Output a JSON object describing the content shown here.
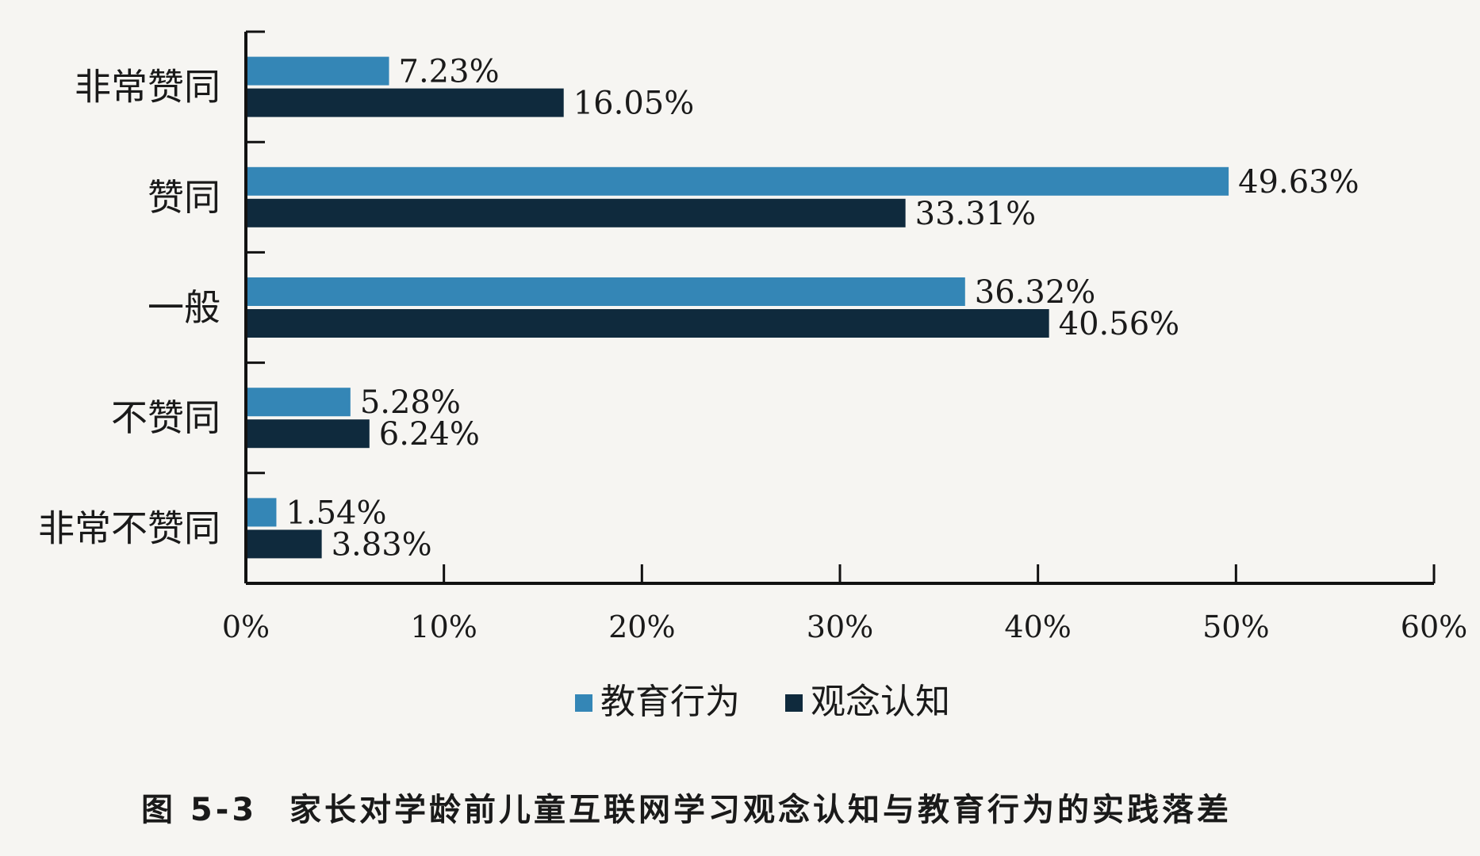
{
  "chart_data": {
    "type": "bar",
    "orientation": "horizontal",
    "categories": [
      "非常赞同",
      "赞同",
      "一般",
      "不赞同",
      "非常不赞同"
    ],
    "series": [
      {
        "name": "教育行为",
        "color": "#3486b6",
        "values": [
          7.23,
          49.63,
          36.32,
          5.28,
          1.54
        ],
        "labels": [
          "7.23%",
          "49.63%",
          "36.32%",
          "5.28%",
          "1.54%"
        ]
      },
      {
        "name": "观念认知",
        "color": "#0f2a3d",
        "values": [
          16.05,
          33.31,
          40.56,
          6.24,
          3.83
        ],
        "labels": [
          "16.05%",
          "33.31%",
          "40.56%",
          "6.24%",
          "3.83%"
        ]
      }
    ],
    "xlim": [
      0,
      60
    ],
    "xticks": [
      0,
      10,
      20,
      30,
      40,
      50,
      60
    ],
    "xtick_labels": [
      "0%",
      "10%",
      "20%",
      "30%",
      "40%",
      "50%",
      "60%"
    ],
    "legend_position": "bottom",
    "grid": false,
    "title": "",
    "xlabel": "",
    "ylabel": ""
  },
  "figure": {
    "number": "图 5-3",
    "caption": "家长对学龄前儿童互联网学习观念认知与教育行为的实践落差"
  }
}
